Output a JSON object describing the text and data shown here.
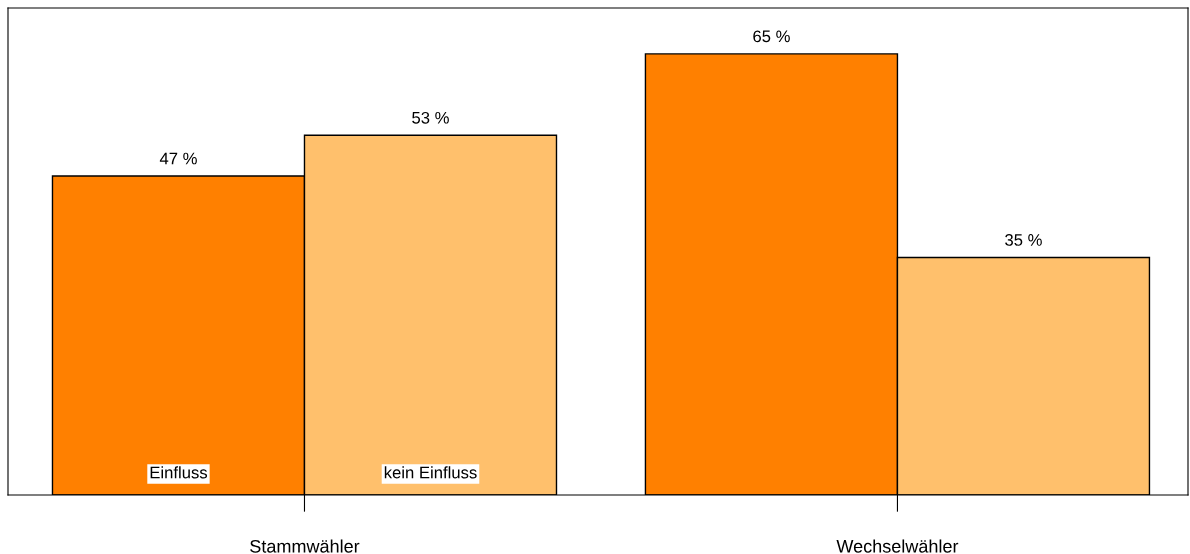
{
  "chart_data": {
    "type": "bar",
    "categories": [
      "Stammwähler",
      "Wechselwähler"
    ],
    "series": [
      {
        "name": "Einfluss",
        "color": "#ff8000",
        "values": [
          47,
          65
        ],
        "value_labels": [
          "47 %",
          "65 %"
        ]
      },
      {
        "name": "kein Einfluss",
        "color": "#ffc06c",
        "values": [
          53,
          35
        ],
        "value_labels": [
          "53 %",
          "35 %"
        ]
      }
    ],
    "grid": false
  }
}
